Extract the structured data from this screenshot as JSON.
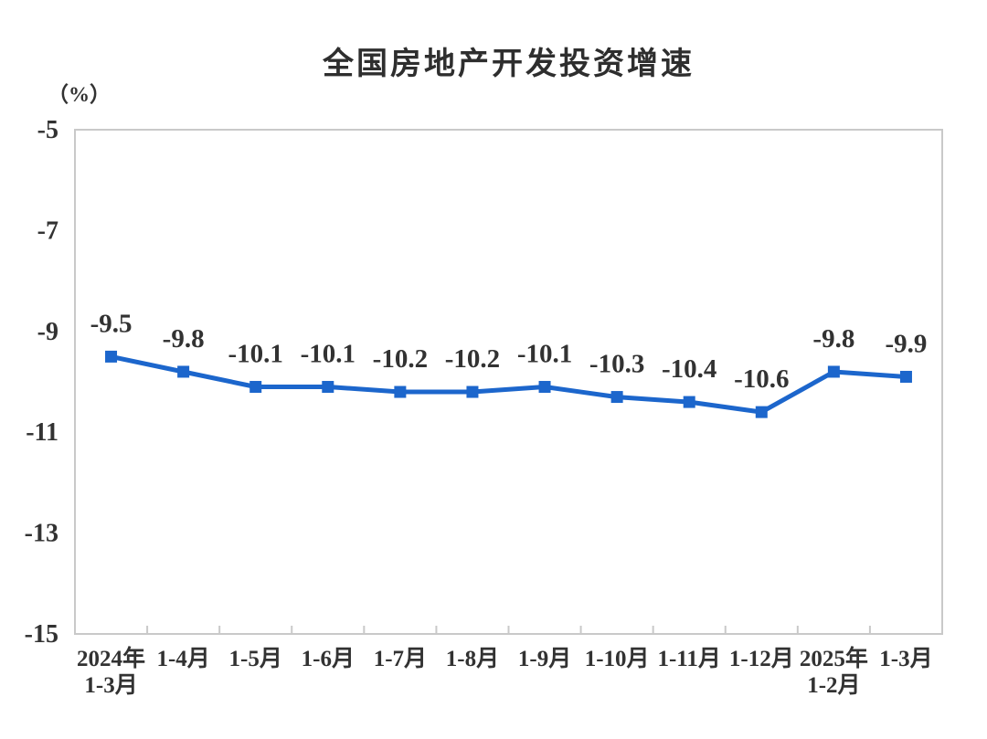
{
  "chart_data": {
    "type": "line",
    "title": "全国房地产开发投资增速",
    "unit": "（%）",
    "categories": [
      "2024年\n1-3月",
      "1-4月",
      "1-5月",
      "1-6月",
      "1-7月",
      "1-8月",
      "1-9月",
      "1-10月",
      "1-11月",
      "1-12月",
      "2025年\n1-2月",
      "1-3月"
    ],
    "values": [
      -9.5,
      -9.8,
      -10.1,
      -10.1,
      -10.2,
      -10.2,
      -10.1,
      -10.3,
      -10.4,
      -10.6,
      -9.8,
      -9.9
    ],
    "data_labels": [
      "-9.5",
      "-9.8",
      "-10.1",
      "-10.1",
      "-10.2",
      "-10.2",
      "-10.1",
      "-10.3",
      "-10.4",
      "-10.6",
      "-9.8",
      "-9.9"
    ],
    "ylim": [
      -15,
      -5
    ],
    "yticks": [
      -5,
      -7,
      -9,
      -11,
      -13,
      -15
    ],
    "grid": false,
    "legend": "none",
    "marker": "square",
    "colors": {
      "line": "#1c66cc",
      "marker": "#1c66cc",
      "axis": "#c9c9c9",
      "text": "#323232",
      "title": "#2e2e2e",
      "background": "#ffffff"
    }
  }
}
